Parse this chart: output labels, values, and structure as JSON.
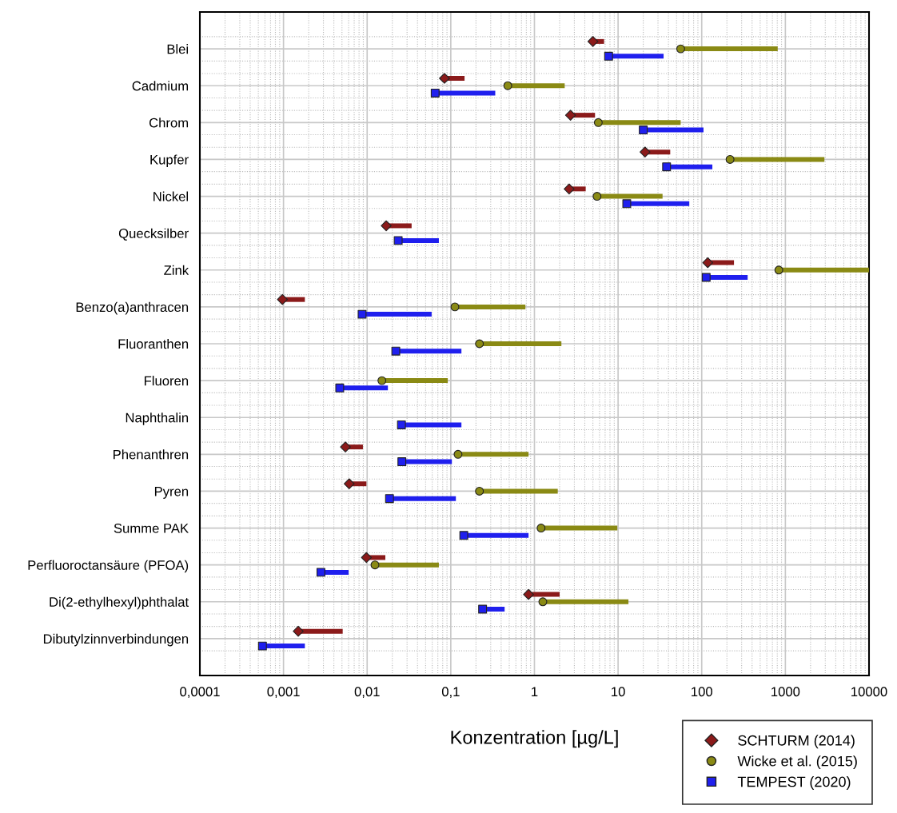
{
  "chart_data": {
    "type": "bar",
    "orientation": "horizontal",
    "xlabel": "Konzentration [µg/L]",
    "categories": [
      "Blei",
      "Cadmium",
      "Chrom",
      "Kupfer",
      "Nickel",
      "Quecksilber",
      "Zink",
      "Benzo(a)anthracen",
      "Fluoranthen",
      "Fluoren",
      "Naphthalin",
      "Phenanthren",
      "Pyren",
      "Summe PAK",
      "Perfluoroctansäure (PFOA)",
      "Di(2-ethylhexyl)phthalat",
      "Dibutylzinnverbindungen"
    ],
    "series": [
      {
        "color": "#8b1a1a",
        "base": [
          5.0,
          0.084,
          2.7,
          21,
          2.6,
          0.0169,
          118,
          0.00097,
          null,
          null,
          null,
          0.0055,
          0.0061,
          null,
          0.0098,
          0.85,
          0.0015
        ],
        "values": [
          1.8,
          0.062,
          2.6,
          21,
          1.5,
          0.0171,
          125,
          0.00083,
          null,
          null,
          null,
          0.0034,
          0.0037,
          null,
          0.0067,
          1.15,
          0.0036
        ]
      },
      {
        "color": "#8a8a14",
        "base": [
          56,
          0.48,
          5.8,
          218,
          5.6,
          null,
          835,
          0.112,
          0.22,
          0.015,
          null,
          0.122,
          0.22,
          1.2,
          0.0124,
          1.26,
          null
        ],
        "values": [
          754,
          1.82,
          50.2,
          2712,
          28.4,
          null,
          9165,
          0.668,
          1.88,
          0.077,
          null,
          0.728,
          1.68,
          8.6,
          0.0596,
          12.04,
          null
        ]
      },
      {
        "color": "#1f1fee",
        "base": [
          7.7,
          0.065,
          20,
          38,
          12.7,
          0.0235,
          113,
          0.0087,
          0.022,
          0.0047,
          0.0257,
          0.026,
          0.0185,
          0.143,
          0.0028,
          0.24,
          0.00056
        ],
        "values": [
          27.3,
          0.275,
          85,
          96,
          58.3,
          0.0485,
          241,
          0.0503,
          0.112,
          0.013,
          0.1083,
          0.077,
          0.0965,
          0.707,
          0.0032,
          0.2,
          0.00124
        ]
      },
      {
        "type": "scatter",
        "name": "SCHTURM (2014)",
        "color": "#8b1a1a",
        "marker": "diamond",
        "values": [
          5.0,
          0.084,
          2.7,
          21,
          2.6,
          0.0169,
          118,
          0.00097,
          null,
          null,
          null,
          0.0055,
          0.0061,
          null,
          0.0098,
          0.85,
          0.0015
        ]
      },
      {
        "type": "scatter",
        "name": "Wicke et al. (2015)",
        "color": "#8a8a14",
        "marker": "circle",
        "values": [
          56,
          0.48,
          5.8,
          218,
          5.6,
          null,
          835,
          0.112,
          0.22,
          0.015,
          null,
          0.122,
          0.22,
          1.2,
          0.0124,
          1.26,
          null
        ]
      },
      {
        "type": "scatter",
        "name": "TEMPEST (2020)",
        "color": "#1f1fee",
        "marker": "square",
        "values": [
          7.7,
          0.065,
          20,
          38,
          12.7,
          0.0235,
          113,
          0.0087,
          0.022,
          0.0047,
          0.0257,
          0.026,
          0.0185,
          0.143,
          0.0028,
          0.24,
          0.00056
        ]
      }
    ],
    "log": "x",
    "xlim": [
      0.0001,
      10000
    ],
    "xticks": [
      {
        "value": 0.0001,
        "label": "0,0001"
      },
      {
        "value": 0.001,
        "label": "0,001"
      },
      {
        "value": 0.01,
        "label": "0,01"
      },
      {
        "value": 0.1,
        "label": "0,1"
      },
      1,
      10,
      100,
      1000,
      10000
    ],
    "grid": true,
    "legend": "bottom right"
  }
}
